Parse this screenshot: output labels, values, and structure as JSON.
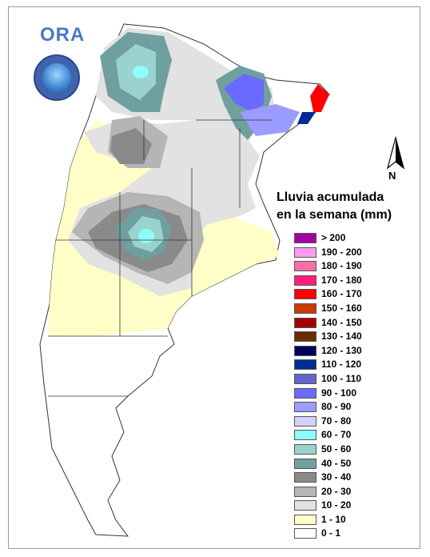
{
  "organization": "ORA",
  "legend": {
    "title_line1": "Lluvia acumulada",
    "title_line2": "en la semana (mm)",
    "items": [
      {
        "label": "> 200",
        "color": "#a000a0"
      },
      {
        "label": "190 - 200",
        "color": "#ff9cf2"
      },
      {
        "label": "180 - 190",
        "color": "#ff6fa6"
      },
      {
        "label": "170 - 180",
        "color": "#ff1f7a"
      },
      {
        "label": "160 - 170",
        "color": "#ff0000"
      },
      {
        "label": "150 - 160",
        "color": "#cc3a06"
      },
      {
        "label": "140 - 150",
        "color": "#a30000"
      },
      {
        "label": "130 - 140",
        "color": "#6b2c00"
      },
      {
        "label": "120 - 130",
        "color": "#00005c"
      },
      {
        "label": "110 - 120",
        "color": "#002c96"
      },
      {
        "label": "100 - 110",
        "color": "#6166cc"
      },
      {
        "label": "90 - 100",
        "color": "#6a6aff"
      },
      {
        "label": "80 - 90",
        "color": "#9a9cff"
      },
      {
        "label": "70 - 80",
        "color": "#d0d2fa"
      },
      {
        "label": "60 - 70",
        "color": "#8ffcfc"
      },
      {
        "label": "50 - 60",
        "color": "#9ad3cd"
      },
      {
        "label": "40 - 50",
        "color": "#6f9f9f"
      },
      {
        "label": "30 - 40",
        "color": "#8a8a8a"
      },
      {
        "label": "20 - 30",
        "color": "#b5b5b5"
      },
      {
        "label": "10 - 20",
        "color": "#e2e2e2"
      },
      {
        "label": "1 - 10",
        "color": "#ffffc8"
      },
      {
        "label": "0 - 1",
        "color": "#ffffff"
      }
    ]
  },
  "north_arrow": {
    "label": "N"
  },
  "icons": {
    "seal": "government-seal-icon",
    "north": "north-arrow-icon"
  }
}
